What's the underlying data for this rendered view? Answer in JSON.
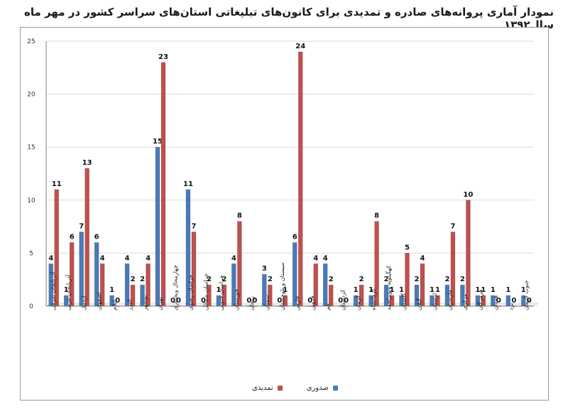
{
  "page_title": "نمودار آماری پروانه‌های صادره و تمدیدی برای کانون‌های تبلیغاتی استان‌های سراسر کشور در مهر ماه سال۱۳۹۲",
  "colors": {
    "series1": "#4a7ab9",
    "series2": "#c0504d",
    "grid": "#d9d9d9",
    "axis": "#7f7f7f"
  },
  "chart_data": {
    "type": "bar",
    "title": "نمودار آماری پروانه‌های صادره و تمدیدی برای کانون‌های تبلیغاتی استان‌های سراسر کشور در مهر ماه سال۱۳۹۲",
    "xlabel": "",
    "ylabel": "",
    "ylim": [
      0,
      25
    ],
    "yticks": [
      0,
      5,
      10,
      15,
      20,
      25
    ],
    "grid": true,
    "legend_position": "bottom",
    "categories": [
      "آذربایجان شرقی",
      "آذربایجان غربی",
      "اردبیل",
      "اصفهان",
      "ایلام",
      "البرز",
      "بوشهر",
      "تهران",
      "چهارمحال وبختیاری",
      "خراسان رضوی",
      "خراسان شمالی",
      "خراسان جنوبی",
      "خوزستان",
      "زنجان",
      "سمنان",
      "سیستان و بلوچستان",
      "فارس",
      "قزوین",
      "قم",
      "کردستان",
      "کرمان",
      "کرمانشاه",
      "کهگیلویه وبویراحمد",
      "گلستان",
      "گیلان",
      "لرستان",
      "مازندران",
      "مرکزی",
      "هرمزگان",
      "همدان",
      "یزد",
      "جنوب کرمان"
    ],
    "series": [
      {
        "name": "صدوری",
        "values": [
          4,
          1,
          7,
          6,
          1,
          4,
          2,
          15,
          0,
          11,
          0,
          1,
          4,
          0,
          3,
          0,
          6,
          0,
          4,
          0,
          1,
          1,
          2,
          1,
          2,
          1,
          2,
          2,
          1,
          1,
          1,
          1
        ]
      },
      {
        "name": "تمدیدی",
        "values": [
          11,
          6,
          13,
          4,
          0,
          2,
          4,
          23,
          0,
          7,
          2,
          2,
          8,
          0,
          2,
          1,
          24,
          4,
          2,
          0,
          2,
          8,
          1,
          5,
          4,
          1,
          7,
          10,
          1,
          0,
          0,
          0
        ]
      }
    ]
  }
}
